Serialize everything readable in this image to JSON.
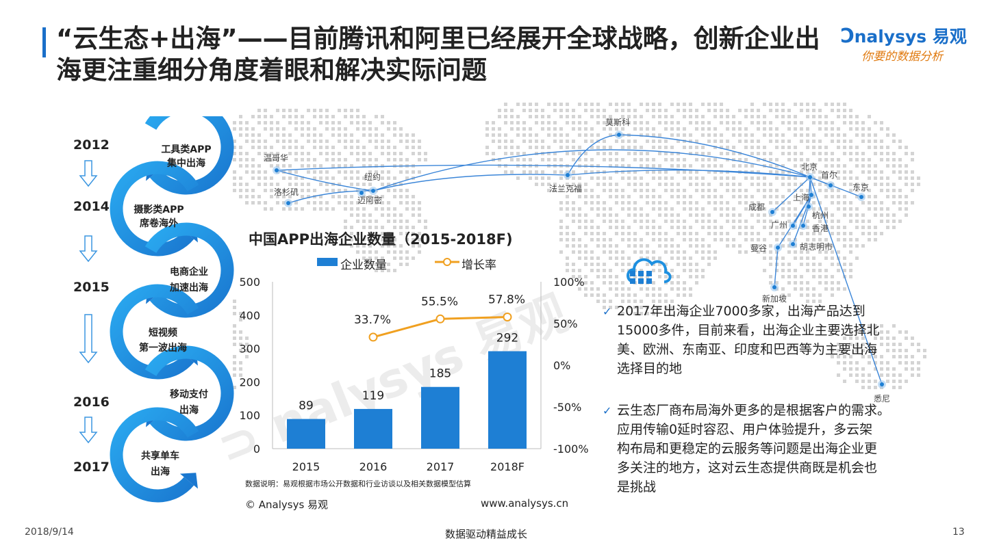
{
  "title": "“云生态+出海”——目前腾讯和阿里已经展开全球战略，创新企业出海更注重细分角度着眼和解决实际问题",
  "logo": {
    "brand": "nalysys 易观",
    "tagline": "你要的数据分析"
  },
  "timeline": {
    "years": [
      "2012",
      "2014",
      "2015",
      "2016",
      "2017"
    ],
    "steps": [
      {
        "line1": "工具类APP",
        "line2": "集中出海"
      },
      {
        "line1": "摄影类APP",
        "line2": "席卷海外"
      },
      {
        "line1": "电商企业",
        "line2": "加速出海"
      },
      {
        "line1": "短视频",
        "line2": "第一波出海"
      },
      {
        "line1": "移动支付",
        "line2": "出海"
      },
      {
        "line1": "共享单车",
        "line2": "出海"
      }
    ]
  },
  "map": {
    "cities": [
      "温哥华",
      "纽约",
      "洛杉矶",
      "迈阿密",
      "莫斯科",
      "法兰克福",
      "北京",
      "首尔",
      "东京",
      "上海",
      "成都",
      "杭州",
      "广州",
      "香港",
      "曼谷",
      "胡志明市",
      "新加坡",
      "悉尼"
    ]
  },
  "chart_data": {
    "type": "bar",
    "title": "中国APP出海企业数量（2015-2018F)",
    "categories": [
      "2015",
      "2016",
      "2017",
      "2018F"
    ],
    "series": [
      {
        "name": "企业数量",
        "values": [
          89,
          119,
          185,
          292
        ],
        "axis": "left",
        "color": "#1e7fd4"
      },
      {
        "name": "增长率",
        "values": [
          null,
          33.7,
          55.5,
          57.8
        ],
        "labels": [
          "",
          "33.7%",
          "55.5%",
          "57.8%"
        ],
        "axis": "right",
        "type": "line",
        "color": "#f0a020"
      }
    ],
    "ylim": [
      0,
      500
    ],
    "yticks": [
      "0",
      "100",
      "200",
      "300",
      "400",
      "500"
    ],
    "y2lim": [
      -100,
      100
    ],
    "y2ticks": [
      "-100%",
      "-50%",
      "0%",
      "50%",
      "100%"
    ],
    "legend": "top"
  },
  "chart_note": "数据说明：易观根据市场公开数据和行业访谈以及相关数据模型估算",
  "copyright": "© Analysys 易观",
  "website": "www.analysys.cn",
  "bullets": [
    {
      "lines": [
        "2017年出海企业7000多家，出海产品达到",
        "15000多件，目前来看，出海企业主要选择北",
        "美、欧洲、东南亚、印度和巴西等为主要出海",
        "选择目的地"
      ]
    },
    {
      "lines": [
        "云生态厂商布局海外更多的是根据客户的需求。",
        "应用传输0延时容忍、用户体验提升，多云架",
        "构布局和更稳定的云服务等问题是出海企业更",
        "多关注的地方，这对云生态提供商既是机会也",
        "是挑战"
      ]
    }
  ],
  "footer": {
    "date": "2018/9/14",
    "slogan": "数据驱动精益成长",
    "page": "13"
  },
  "colors": {
    "accent": "#1a6fc9",
    "bar": "#1e7fd4",
    "line": "#f0a020",
    "arrow": "#1e90e0"
  }
}
